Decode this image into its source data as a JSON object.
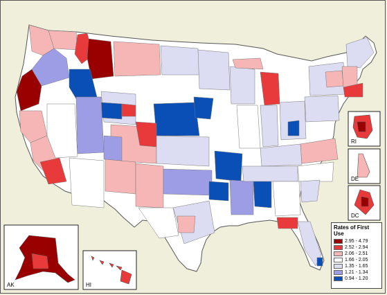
{
  "legend": {
    "title": "Rates of First Use",
    "classes": [
      {
        "label": "2.95 - 4.79",
        "color": "#990000"
      },
      {
        "label": "2.52 - 2.94",
        "color": "#e83a3a"
      },
      {
        "label": "2.06 - 2.51",
        "color": "#f7b6b6"
      },
      {
        "label": "1.66 - 2.05",
        "color": "#ffffff"
      },
      {
        "label": "1.35 - 1.65",
        "color": "#dcdcf2"
      },
      {
        "label": "1.21 - 1.34",
        "color": "#9d9de6"
      },
      {
        "label": "0.94 - 1.20",
        "color": "#0a4fb5"
      }
    ]
  },
  "insets": {
    "ak": "AK",
    "hi": "HI",
    "ri": "RI",
    "de": "DE",
    "dc": "DC"
  },
  "colors": {
    "background": "#f0efdc",
    "land_default": "#ffffff",
    "boundary": "#555555"
  }
}
